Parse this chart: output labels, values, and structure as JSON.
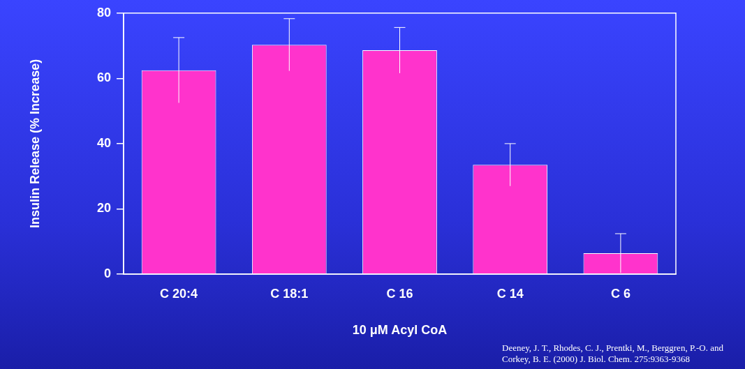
{
  "chart_data": {
    "type": "bar",
    "ylabel": "Insulin Release (% Increase)",
    "xlabel": "10 μM Acyl CoA",
    "categories": [
      "C 20:4",
      "C 18:1",
      "C 16",
      "C 14",
      "C 6"
    ],
    "values": [
      62.5,
      70.3,
      68.6,
      33.5,
      6.4
    ],
    "errors": [
      10,
      8,
      7,
      6.5,
      6
    ],
    "color": "#ff33cc",
    "ylim": [
      0,
      80
    ],
    "yticks": [
      0,
      20,
      40,
      60,
      80
    ],
    "annotations": [
      "Deeney, J. T., Rhodes, C. J., Prentki, M., Berggren, P.-O. and Corkey, B. E. (2000) J. Biol. Chem. 275:9363-9368"
    ]
  }
}
